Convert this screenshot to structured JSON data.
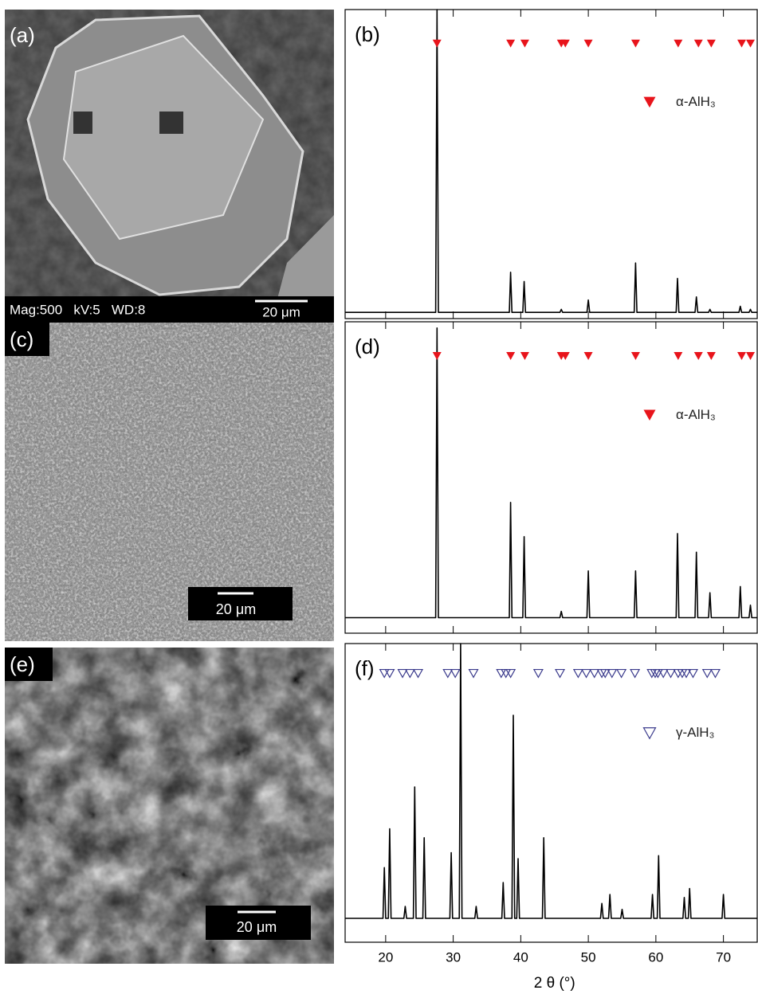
{
  "images": [
    {
      "label": "(a)",
      "caption": "Mag:500   kV:5   WD:8",
      "scale": "20 μm"
    },
    {
      "label": "(c)",
      "scale": "20 μm"
    },
    {
      "label": "(e)",
      "scale": "20 μm"
    }
  ],
  "chart_data": [
    {
      "type": "line",
      "label": "(b)",
      "xlim": [
        14,
        75
      ],
      "ylim": [
        0,
        100
      ],
      "xticks": [
        20,
        30,
        40,
        50,
        60,
        70
      ],
      "color": "#000000",
      "x": [
        14,
        27.4,
        27.6,
        27.8,
        38.3,
        38.5,
        38.7,
        40.3,
        40.5,
        40.7,
        45.8,
        46,
        46.2,
        49.8,
        50,
        50.2,
        56.8,
        57,
        57.2,
        63,
        63.2,
        63.4,
        65.8,
        66,
        66.2,
        67.8,
        68,
        68.2,
        72.3,
        72.5,
        72.7,
        73.8,
        74,
        74.2,
        75
      ],
      "values": [
        2,
        2,
        100,
        2,
        2,
        15,
        2,
        2,
        12,
        2,
        2,
        3,
        2,
        2,
        6,
        2,
        2,
        18,
        2,
        2,
        13,
        2,
        2,
        7,
        2,
        2,
        3,
        2,
        2,
        4,
        2,
        2,
        3,
        2,
        2
      ],
      "reflections": {
        "name": "α-AlH₃",
        "color": "#e8141b",
        "filled": true,
        "x": [
          27.6,
          38.5,
          40.6,
          46,
          46.6,
          50,
          57,
          63.3,
          66.3,
          68.2,
          72.7,
          74
        ],
        "y": [
          89,
          89,
          89,
          89,
          89,
          89,
          89,
          89,
          89,
          89,
          89,
          89
        ]
      }
    },
    {
      "type": "line",
      "label": "(d)",
      "xlim": [
        14,
        75
      ],
      "ylim": [
        0,
        100
      ],
      "xticks": [
        20,
        30,
        40,
        50,
        60,
        70
      ],
      "color": "#000000",
      "x": [
        14,
        27.4,
        27.6,
        27.8,
        38.3,
        38.5,
        38.7,
        40.3,
        40.5,
        40.7,
        45.8,
        46,
        46.2,
        49.8,
        50,
        50.2,
        56.8,
        57,
        57.2,
        63,
        63.2,
        63.4,
        65.8,
        66,
        66.2,
        67.8,
        68,
        68.2,
        72.3,
        72.5,
        72.7,
        73.8,
        74,
        74.2,
        75
      ],
      "values": [
        5,
        5,
        98,
        5,
        5,
        42,
        5,
        5,
        31,
        5,
        5,
        7,
        5,
        5,
        20,
        5,
        5,
        20,
        5,
        5,
        32,
        5,
        5,
        26,
        5,
        5,
        13,
        5,
        5,
        15,
        5,
        5,
        9,
        5,
        5
      ],
      "reflections": {
        "name": "α-AlH₃",
        "color": "#e8141b",
        "filled": true,
        "x": [
          27.6,
          38.5,
          40.6,
          46,
          46.6,
          50,
          57,
          63.3,
          66.3,
          68.2,
          72.7,
          74
        ],
        "y": [
          89,
          89,
          89,
          89,
          89,
          89,
          89,
          89,
          89,
          89,
          89,
          89
        ]
      }
    },
    {
      "type": "line",
      "label": "(f)",
      "xlim": [
        14,
        75
      ],
      "ylim": [
        0,
        100
      ],
      "xticks": [
        20,
        30,
        40,
        50,
        60,
        70
      ],
      "xlabel": "2 θ (°)",
      "color": "#000000",
      "x": [
        14,
        19.6,
        19.8,
        20,
        20.4,
        20.6,
        20.8,
        22.7,
        22.9,
        23.1,
        24.1,
        24.3,
        24.5,
        25.5,
        25.7,
        25.9,
        29.5,
        29.7,
        29.9,
        30.9,
        31.1,
        31.3,
        33.2,
        33.4,
        33.6,
        37.2,
        37.4,
        37.6,
        38.7,
        38.9,
        39.1,
        39.4,
        39.6,
        39.8,
        43.2,
        43.4,
        43.6,
        51.8,
        52,
        52.2,
        53,
        53.2,
        53.4,
        54.8,
        55,
        55.2,
        59.3,
        59.5,
        59.7,
        60.2,
        60.4,
        60.6,
        64,
        64.2,
        64.4,
        64.8,
        65,
        65.2,
        69.8,
        70,
        70.2,
        75
      ],
      "values": [
        8,
        8,
        25,
        8,
        8,
        38,
        8,
        8,
        12,
        8,
        8,
        52,
        8,
        8,
        35,
        8,
        8,
        30,
        8,
        8,
        100,
        8,
        8,
        12,
        8,
        8,
        20,
        8,
        8,
        76,
        8,
        8,
        28,
        8,
        8,
        35,
        8,
        8,
        13,
        8,
        8,
        16,
        8,
        8,
        11,
        8,
        8,
        16,
        8,
        8,
        29,
        8,
        8,
        15,
        8,
        8,
        18,
        8,
        8,
        16,
        8,
        8
      ],
      "reflections": {
        "name": "γ-AlH₃",
        "color": "#3a3a8c",
        "filled": false,
        "x": [
          19.8,
          20.6,
          22.5,
          23.6,
          24.8,
          29.2,
          30.3,
          33,
          37.1,
          37.8,
          38.5,
          42.6,
          45.8,
          48.5,
          49.7,
          50.9,
          52,
          52.5,
          53.5,
          54.9,
          56.9,
          59.4,
          59.9,
          60.3,
          61.1,
          62.2,
          63.3,
          63.9,
          64.5,
          65.5,
          67.6,
          68.8
        ],
        "y": [
          90,
          90,
          90,
          90,
          90,
          90,
          90,
          90,
          90,
          90,
          90,
          90,
          90,
          90,
          90,
          90,
          90,
          90,
          90,
          90,
          90,
          90,
          90,
          90,
          90,
          90,
          90,
          90,
          90,
          90,
          90,
          90
        ]
      }
    }
  ]
}
